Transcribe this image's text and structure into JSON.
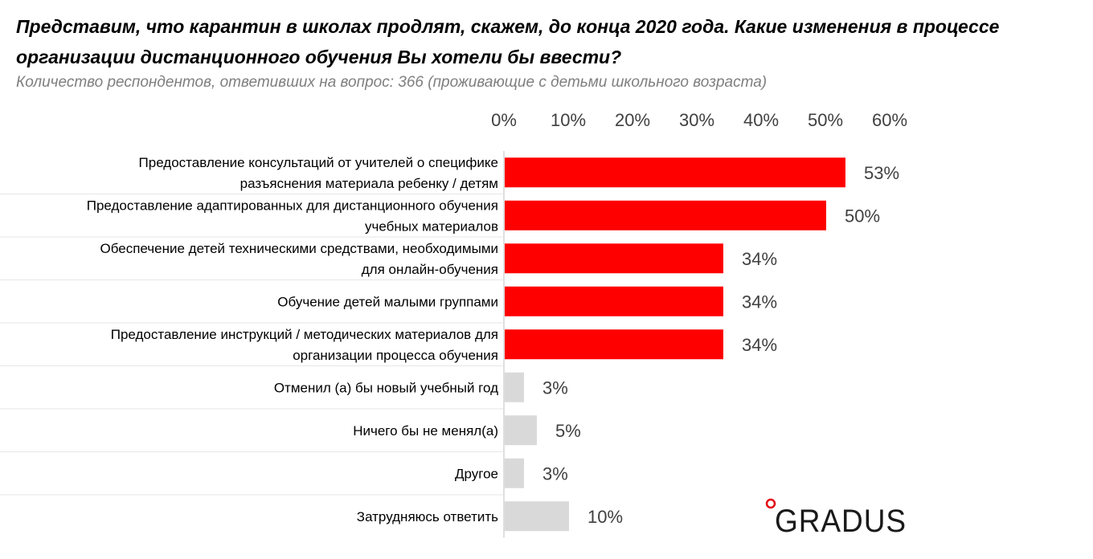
{
  "title": "Представим, что карантин в школах продлят, скажем, до конца 2020 года. Какие изменения в процессе организации дистанционного обучения Вы хотели бы ввести?",
  "subtitle": "Количество респондентов, ответивших на вопрос: 366 (проживающие с детьми школьного возраста)",
  "logo_text": "GRADUS",
  "colors": {
    "highlight": "#ff0000",
    "other": "#d9d9d9"
  },
  "chart_data": {
    "type": "bar",
    "orientation": "horizontal",
    "xlim": [
      0,
      60
    ],
    "ticks": [
      "0%",
      "10%",
      "20%",
      "30%",
      "40%",
      "50%",
      "60%"
    ],
    "tick_values": [
      0,
      10,
      20,
      30,
      40,
      50,
      60
    ],
    "categories": [
      [
        "Предоставление консультаций от учителей о специфике",
        "разъяснения материала ребенку / детям"
      ],
      [
        "Предоставление адаптированных для дистанционного обучения",
        "учебных материалов"
      ],
      [
        "Обеспечение детей техническими средствами, необходимыми",
        "для онлайн-обучения"
      ],
      [
        "Обучение детей малыми группами"
      ],
      [
        "Предоставление инструкций / методических материалов для",
        "организации процесса обучения"
      ],
      [
        "Отменил (а) бы новый учебный год"
      ],
      [
        "Ничего бы не менял(а)"
      ],
      [
        "Другое"
      ],
      [
        "Затрудняюсь ответить"
      ]
    ],
    "values": [
      53,
      50,
      34,
      34,
      34,
      3,
      5,
      3,
      10
    ],
    "labels": [
      "53%",
      "50%",
      "34%",
      "34%",
      "34%",
      "3%",
      "5%",
      "3%",
      "10%"
    ],
    "highlight": [
      true,
      true,
      true,
      true,
      true,
      false,
      false,
      false,
      false
    ]
  }
}
